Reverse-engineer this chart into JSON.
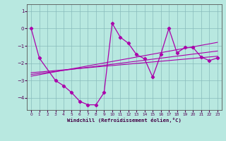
{
  "bg_color": "#b8e8e0",
  "line_color": "#aa00aa",
  "grid_color": "#88bbbb",
  "xlabel": "Windchill (Refroidissement éolien,°C)",
  "xlim": [
    -0.5,
    23.5
  ],
  "ylim": [
    -4.7,
    1.4
  ],
  "yticks": [
    1,
    0,
    -1,
    -2,
    -3,
    -4
  ],
  "xticks": [
    0,
    1,
    2,
    3,
    4,
    5,
    6,
    7,
    8,
    9,
    10,
    11,
    12,
    13,
    14,
    15,
    16,
    17,
    18,
    19,
    20,
    21,
    22,
    23
  ],
  "main_x": [
    0,
    1,
    3,
    4,
    5,
    6,
    7,
    8,
    9,
    10,
    11,
    12,
    13,
    14,
    15,
    16,
    17,
    18,
    19,
    20,
    21,
    22,
    23
  ],
  "main_y": [
    0,
    -1.7,
    -3.0,
    -3.3,
    -3.7,
    -4.2,
    -4.4,
    -4.4,
    -3.7,
    0.3,
    -0.5,
    -0.85,
    -1.5,
    -1.75,
    -2.8,
    -1.5,
    0.0,
    -1.4,
    -1.1,
    -1.1,
    -1.65,
    -1.85,
    -1.7
  ],
  "line1_x": [
    0,
    23
  ],
  "line1_y": [
    -2.55,
    -1.6
  ],
  "line2_x": [
    0,
    23
  ],
  "line2_y": [
    -2.65,
    -1.3
  ],
  "line3_x": [
    0,
    23
  ],
  "line3_y": [
    -2.75,
    -0.8
  ]
}
